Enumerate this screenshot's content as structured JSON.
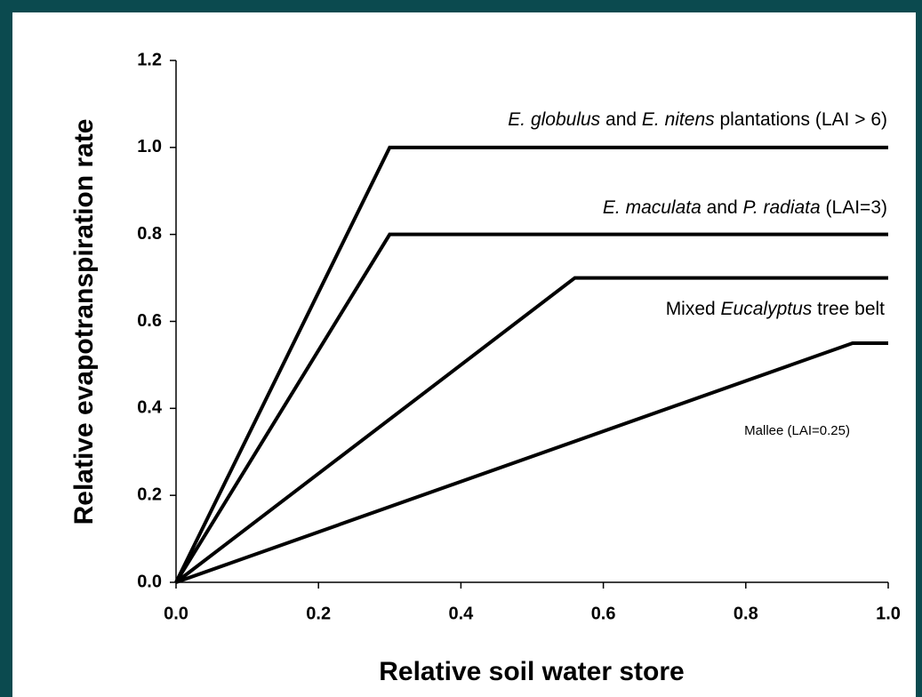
{
  "chart_data": {
    "type": "line",
    "xlabel": "Relative soil water store",
    "ylabel": "Relative evapotranspiration rate",
    "xlim": [
      0,
      1.0
    ],
    "ylim": [
      0,
      1.2
    ],
    "xticks": [
      {
        "value": 0,
        "label": "0.0"
      },
      0.2,
      0.4,
      0.6,
      0.8,
      {
        "value": 1,
        "label": "1.0"
      }
    ],
    "yticks": [
      {
        "value": 0,
        "label": "0.0"
      },
      0.2,
      0.4,
      0.6,
      0.8,
      {
        "value": 1,
        "label": "1.0"
      },
      1.2
    ],
    "series": [
      {
        "label": [
          {
            "text": "E. globulus",
            "italic": true
          },
          {
            "text": " and "
          },
          {
            "text": "E. nitens",
            "italic": true
          },
          {
            "text": " plantations (LAI > 6)"
          }
        ],
        "color": "#000000",
        "x": [
          0,
          0.3,
          1.0
        ],
        "values": [
          0,
          1.0,
          1.0
        ]
      },
      {
        "label": [
          {
            "text": "E. maculata",
            "italic": true
          },
          {
            "text": " and "
          },
          {
            "text": "P. radiata",
            "italic": true
          },
          {
            "text": " (LAI=3)"
          }
        ],
        "color": "#000000",
        "x": [
          0,
          0.3,
          1.0
        ],
        "values": [
          0,
          0.8,
          0.8
        ]
      },
      {
        "label": [
          {
            "text": "Mixed "
          },
          {
            "text": "Eucalyptus",
            "italic": true
          },
          {
            "text": " tree belt"
          }
        ],
        "color": "#000000",
        "x": [
          0,
          0.56,
          1.0
        ],
        "values": [
          0,
          0.7,
          0.7
        ]
      },
      {
        "label": [
          {
            "text": "Mallee (LAI=0.25)"
          }
        ],
        "color": "#000000",
        "x": [
          0,
          0.95,
          1.0
        ],
        "values": [
          0,
          0.55,
          0.55
        ]
      }
    ]
  }
}
